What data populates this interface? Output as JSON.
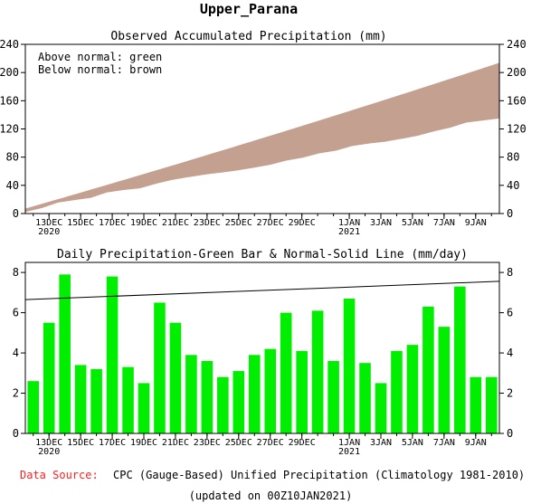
{
  "title": "Upper_Parana",
  "footer": {
    "source_label": "Data Source:",
    "source_text": "CPC (Gauge-Based) Unified Precipitation (Climatology 1981-2010)",
    "updated": "(updated on 00Z10JAN2021)"
  },
  "colors": {
    "above": "#00ee00",
    "below": "#c4a090",
    "bar": "#00ee00",
    "normal_line": "#000000",
    "source_label": "#ff2020"
  },
  "chart_data": [
    {
      "type": "area",
      "title": "Observed Accumulated Precipitation (mm)",
      "annotations": [
        "Above normal: green",
        "Below normal: brown"
      ],
      "ylim": [
        0,
        240
      ],
      "yticks": [
        0,
        40,
        80,
        120,
        160,
        200,
        240
      ],
      "x_ticks": [
        {
          "day": 1,
          "label": "13DEC",
          "label2": "2020"
        },
        {
          "day": 3,
          "label": "15DEC"
        },
        {
          "day": 5,
          "label": "17DEC"
        },
        {
          "day": 7,
          "label": "19DEC"
        },
        {
          "day": 9,
          "label": "21DEC"
        },
        {
          "day": 11,
          "label": "23DEC"
        },
        {
          "day": 13,
          "label": "25DEC"
        },
        {
          "day": 15,
          "label": "27DEC"
        },
        {
          "day": 17,
          "label": "29DEC"
        },
        {
          "day": 20,
          "label": "1JAN",
          "label2": "2021"
        },
        {
          "day": 22,
          "label": "3JAN"
        },
        {
          "day": 24,
          "label": "5JAN"
        },
        {
          "day": 26,
          "label": "7JAN"
        },
        {
          "day": 28,
          "label": "9JAN"
        }
      ],
      "series": [
        {
          "values": [
            2.6,
            8.1,
            16.0,
            19.4,
            22.6,
            30.4,
            33.7,
            36.2,
            42.7,
            48.2,
            52.1,
            55.7,
            58.5,
            61.6,
            65.5,
            69.7,
            75.7,
            79.8,
            85.9,
            89.5,
            96.2,
            99.7,
            102.2,
            106.3,
            110.7,
            117.0,
            122.3,
            129.6,
            132.4,
            135.2
          ]
        },
        {
          "values": [
            6.6,
            13.3,
            20.0,
            26.7,
            33.5,
            40.3,
            47.1,
            54.0,
            60.9,
            67.8,
            74.8,
            81.8,
            88.8,
            95.9,
            103.0,
            110.1,
            117.3,
            124.5,
            131.7,
            139.0,
            146.3,
            153.6,
            161.0,
            168.4,
            175.8,
            183.3,
            190.8,
            198.3,
            205.8,
            213.4
          ]
        }
      ]
    },
    {
      "type": "bar",
      "title": "Daily Precipitation-Green Bar & Normal-Solid Line (mm/day)",
      "ylim": [
        0,
        8.5
      ],
      "yticks": [
        0,
        2,
        4,
        6,
        8
      ],
      "x_ticks": [
        {
          "day": 1,
          "label": "13DEC",
          "label2": "2020"
        },
        {
          "day": 3,
          "label": "15DEC"
        },
        {
          "day": 5,
          "label": "17DEC"
        },
        {
          "day": 7,
          "label": "19DEC"
        },
        {
          "day": 9,
          "label": "21DEC"
        },
        {
          "day": 11,
          "label": "23DEC"
        },
        {
          "day": 13,
          "label": "25DEC"
        },
        {
          "day": 15,
          "label": "27DEC"
        },
        {
          "day": 17,
          "label": "29DEC"
        },
        {
          "day": 20,
          "label": "1JAN",
          "label2": "2021"
        },
        {
          "day": 22,
          "label": "3JAN"
        },
        {
          "day": 24,
          "label": "5JAN"
        },
        {
          "day": 26,
          "label": "7JAN"
        },
        {
          "day": 28,
          "label": "9JAN"
        }
      ],
      "values": [
        2.6,
        5.5,
        7.9,
        3.4,
        3.2,
        7.8,
        3.3,
        2.5,
        6.5,
        5.5,
        3.9,
        3.6,
        2.8,
        3.1,
        3.9,
        4.2,
        6.0,
        4.1,
        6.1,
        3.6,
        6.7,
        3.5,
        2.5,
        4.1,
        4.4,
        6.3,
        5.3,
        7.3,
        2.8,
        2.8
      ],
      "normal": [
        6.65,
        7.56
      ]
    }
  ]
}
